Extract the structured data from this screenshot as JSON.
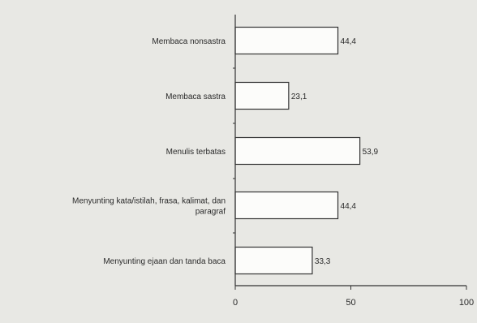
{
  "chart_data": {
    "type": "bar",
    "orientation": "horizontal",
    "categories": [
      [
        "Membaca nonsastra"
      ],
      [
        "Membaca sastra"
      ],
      [
        "Menulis terbatas"
      ],
      [
        "Menyunting kata/istilah, frasa, kalimat, dan",
        "paragraf"
      ],
      [
        "Menyunting ejaan dan tanda baca"
      ]
    ],
    "values": [
      44.4,
      23.1,
      53.9,
      44.4,
      33.3
    ],
    "data_labels": [
      "44,4",
      "23,1",
      "53,9",
      "44,4",
      "33,3"
    ],
    "xlim": [
      0,
      100
    ],
    "x_ticks": [
      0,
      50,
      100
    ],
    "title": "",
    "xlabel": "",
    "ylabel": "",
    "grid": false,
    "colors": {
      "background": "#e8e8e4",
      "bar_fill": "#fcfcfa",
      "stroke": "#333333"
    }
  }
}
